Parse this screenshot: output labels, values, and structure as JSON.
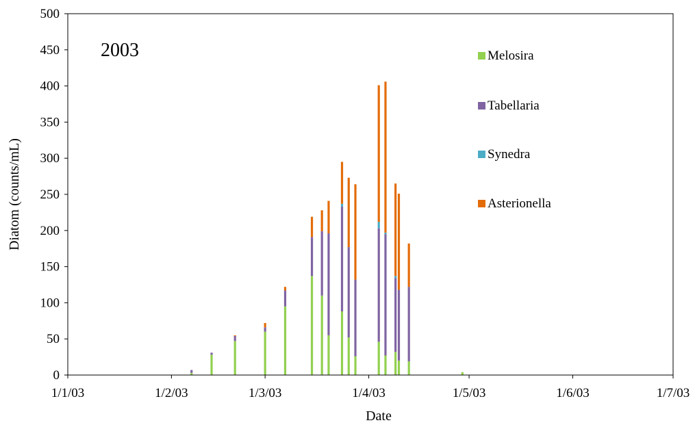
{
  "chart_data": {
    "type": "bar",
    "stacked": true,
    "annotation": "2003",
    "xlabel": "Date",
    "ylabel": "Diatom (counts/mL)",
    "ylim": [
      0,
      500
    ],
    "yticks": [
      0,
      50,
      100,
      150,
      200,
      250,
      300,
      350,
      400,
      450,
      500
    ],
    "xlim": [
      "2003-01-01",
      "2003-07-01"
    ],
    "xticks": [
      {
        "date": "2003-01-01",
        "label": "1/1/03"
      },
      {
        "date": "2003-02-01",
        "label": "1/2/03"
      },
      {
        "date": "2003-03-01",
        "label": "1/3/03"
      },
      {
        "date": "2003-04-01",
        "label": "1/4/03"
      },
      {
        "date": "2003-05-01",
        "label": "1/5/03"
      },
      {
        "date": "2003-06-01",
        "label": "1/6/03"
      },
      {
        "date": "2003-07-01",
        "label": "1/7/03"
      }
    ],
    "grid": false,
    "legend_position": "right",
    "x": [
      "2003-02-07",
      "2003-02-13",
      "2003-02-20",
      "2003-03-01",
      "2003-03-07",
      "2003-03-15",
      "2003-03-18",
      "2003-03-20",
      "2003-03-24",
      "2003-03-26",
      "2003-03-28",
      "2003-04-04",
      "2003-04-06",
      "2003-04-09",
      "2003-04-10",
      "2003-04-13",
      "2003-04-29"
    ],
    "series": [
      {
        "name": "Melosira",
        "color": "#92d050",
        "values": [
          3,
          28,
          47,
          60,
          95,
          137,
          110,
          55,
          88,
          52,
          26,
          46,
          27,
          32,
          20,
          19,
          4
        ]
      },
      {
        "name": "Tabellaria",
        "color": "#8064a2",
        "values": [
          4,
          3,
          7,
          6,
          22,
          54,
          89,
          141,
          145,
          125,
          106,
          157,
          168,
          102,
          98,
          103,
          0
        ]
      },
      {
        "name": "Synedra",
        "color": "#4bacc6",
        "values": [
          0,
          0,
          0,
          0,
          0,
          0,
          0,
          0,
          4,
          0,
          0,
          9,
          2,
          3,
          0,
          0,
          0
        ]
      },
      {
        "name": "Asterionella",
        "color": "#e36c09",
        "values": [
          0,
          0,
          1,
          6,
          5,
          28,
          29,
          45,
          58,
          96,
          132,
          189,
          209,
          128,
          133,
          60,
          0
        ]
      }
    ]
  }
}
